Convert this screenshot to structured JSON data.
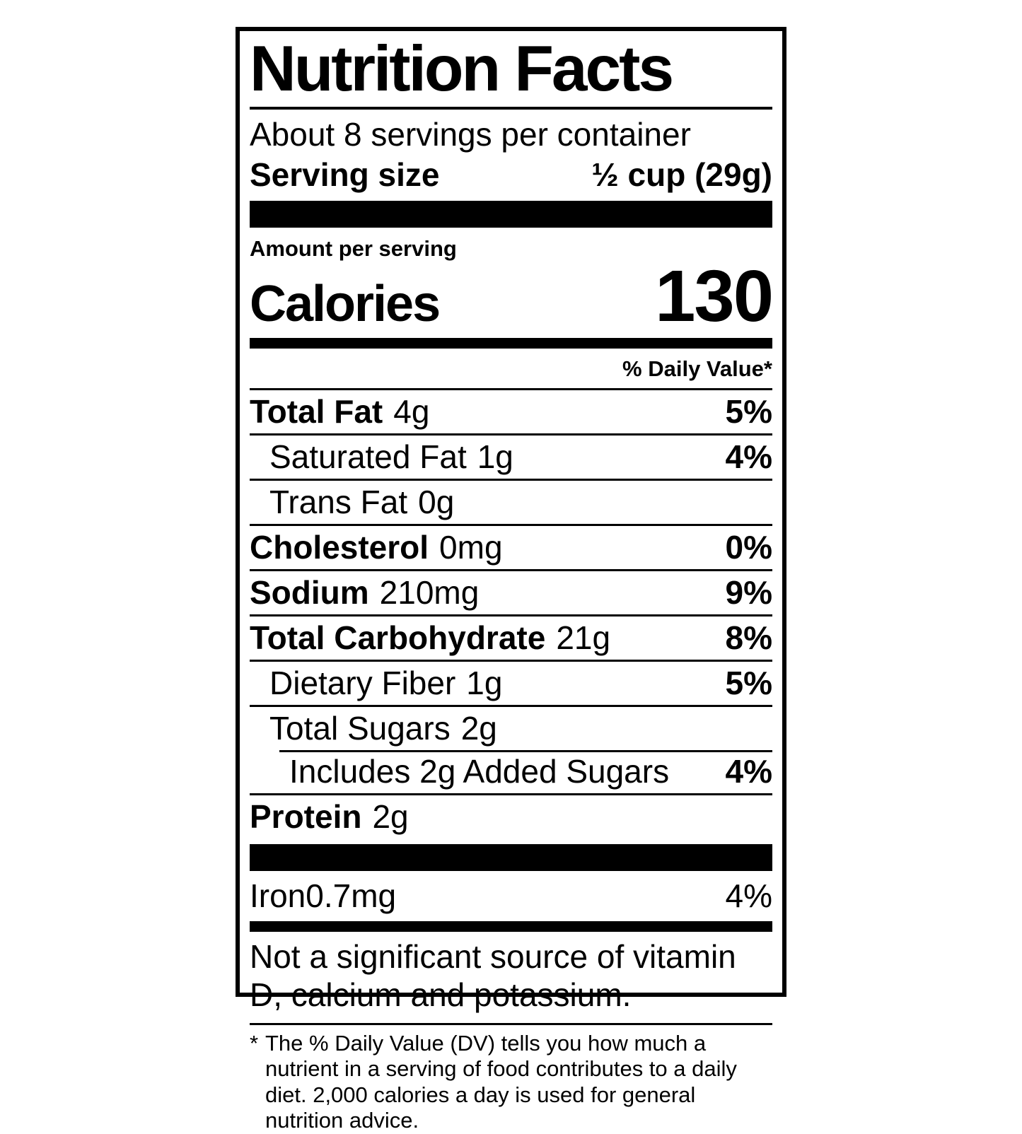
{
  "label": {
    "title": "Nutrition Facts",
    "servings_per_container": "About 8 servings per container",
    "serving_size_label": "Serving size",
    "serving_size_value": "½ cup (29g)",
    "amount_per_serving": "Amount per serving",
    "calories_label": "Calories",
    "calories_value": "130",
    "daily_value_header": "% Daily Value*",
    "rows": [
      {
        "name": "Total Fat",
        "amount": "4g",
        "dv": "5%"
      },
      {
        "name": "Saturated Fat",
        "amount": "1g",
        "dv": "4%"
      },
      {
        "name": "Trans Fat",
        "amount": "0g",
        "dv": ""
      },
      {
        "name": "Cholesterol",
        "amount": "0mg",
        "dv": "0%"
      },
      {
        "name": "Sodium",
        "amount": "210mg",
        "dv": "9%"
      },
      {
        "name": "Total Carbohydrate",
        "amount": "21g",
        "dv": "8%"
      },
      {
        "name": "Dietary Fiber",
        "amount": "1g",
        "dv": "5%"
      },
      {
        "name": "Total Sugars",
        "amount": "2g",
        "dv": ""
      },
      {
        "name": "Includes 2g Added Sugars",
        "amount": "",
        "dv": "4%"
      },
      {
        "name": "Protein",
        "amount": "2g",
        "dv": ""
      }
    ],
    "iron": {
      "name": "Iron",
      "amount": "0.7mg",
      "dv": "4%"
    },
    "not_significant": "Not a significant source of vitamin D, calcium and potassium.",
    "footnote_marker": "*",
    "footnote": "The % Daily Value (DV) tells you how much a nutrient in a serving of food contributes to a daily diet. 2,000 calories a day is used for general nutrition advice.",
    "colors": {
      "ink": "#000000",
      "background": "#ffffff"
    }
  }
}
